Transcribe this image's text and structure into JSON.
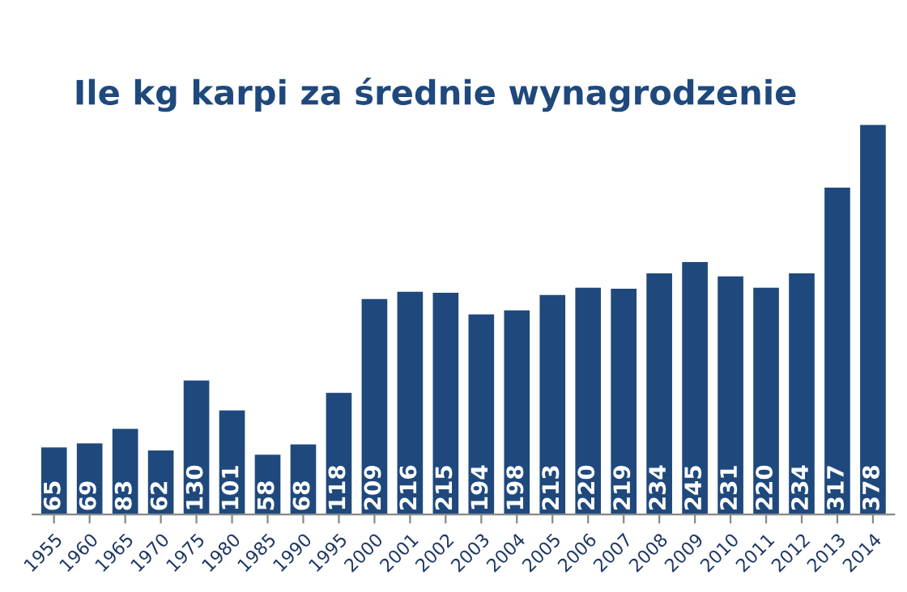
{
  "chart_data": {
    "type": "bar",
    "title": "Ile kg karpi za średnie wynagrodzenie",
    "categories": [
      "1955",
      "1960",
      "1965",
      "1970",
      "1975",
      "1980",
      "1985",
      "1990",
      "1995",
      "2000",
      "2001",
      "2002",
      "2003",
      "2004",
      "2005",
      "2006",
      "2007",
      "2008",
      "2009",
      "2010",
      "2011",
      "2012",
      "2013",
      "2014"
    ],
    "values": [
      65,
      69,
      83,
      62,
      130,
      101,
      58,
      68,
      118,
      209,
      216,
      215,
      194,
      198,
      213,
      220,
      219,
      234,
      245,
      231,
      220,
      234,
      317,
      378
    ],
    "color": "#1f497d",
    "data_labels": true,
    "grid": false,
    "legend": false
  }
}
